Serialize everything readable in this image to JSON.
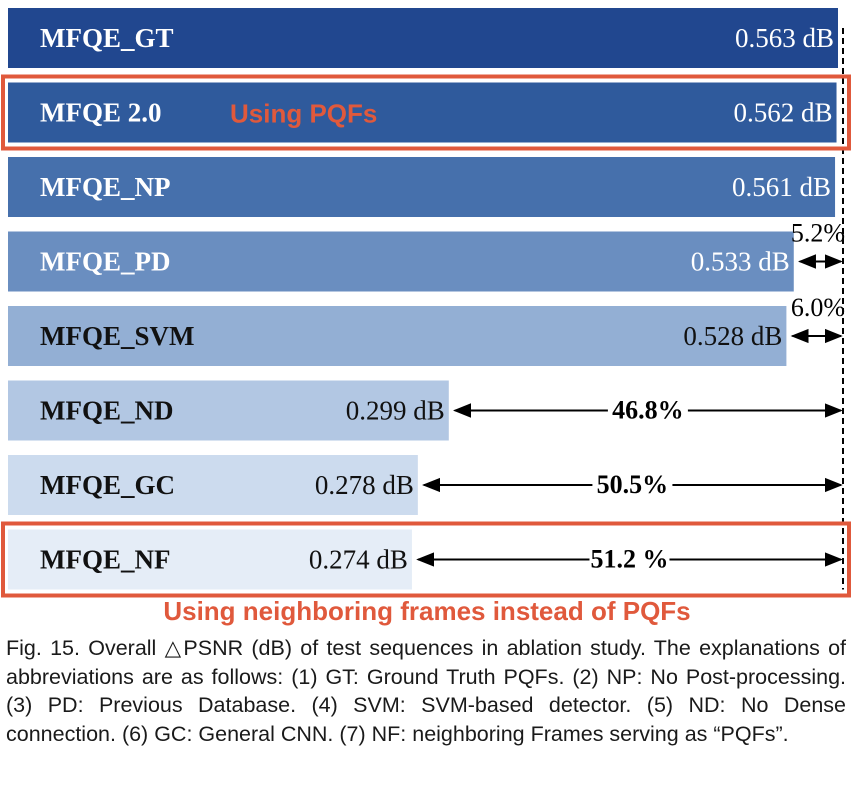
{
  "chart_data": {
    "type": "bar",
    "orientation": "horizontal",
    "unit": "dB",
    "categories": [
      "MFQE_GT",
      "MFQE 2.0",
      "MFQE_NP",
      "MFQE_PD",
      "MFQE_SVM",
      "MFQE_ND",
      "MFQE_GC",
      "MFQE_NF"
    ],
    "values": [
      0.563,
      0.562,
      0.561,
      0.533,
      0.528,
      0.299,
      0.278,
      0.274
    ],
    "value_labels": [
      "0.563 dB",
      "0.562 dB",
      "0.561 dB",
      "0.533 dB",
      "0.528 dB",
      "0.299 dB",
      "0.278 dB",
      "0.274 dB"
    ],
    "bar_colors": [
      "#21478f",
      "#2f5a9c",
      "#4670ac",
      "#6a8ec0",
      "#93afd4",
      "#b2c7e3",
      "#ccdbee",
      "#e5edf7"
    ],
    "label_colors": [
      "#ffffff",
      "#ffffff",
      "#ffffff",
      "#ffffff",
      "#111111",
      "#111111",
      "#111111",
      "#111111"
    ],
    "gaps": [
      {
        "bar": 3,
        "label": "5.2%"
      },
      {
        "bar": 4,
        "label": "6.0%"
      },
      {
        "bar": 5,
        "label": "46.8%"
      },
      {
        "bar": 6,
        "label": "50.5%"
      },
      {
        "bar": 7,
        "label": "51.2 %"
      }
    ],
    "reference_line": "dashed vertical at MFQE_GT value",
    "highlight_boxes": [
      {
        "bar": 1,
        "color": "#e0593c",
        "annotation": "Using PQFs"
      },
      {
        "bar": 7,
        "color": "#e0593c",
        "annotation": "Using neighboring frames instead of PQFs"
      }
    ]
  },
  "caption": "Fig. 15. Overall △PSNR (dB) of test sequences in ablation study. The explanations of abbreviations are as follows: (1) GT: Ground Truth PQFs. (2) NP: No Post-processing. (3) PD: Previous Database. (4) SVM: SVM-based detector. (5) ND: No Dense connection. (6) GC: General CNN. (7) NF: neighboring Frames serving as “PQFs”.",
  "colors": {
    "highlight": "#e0593c",
    "arrow": "#000000"
  }
}
